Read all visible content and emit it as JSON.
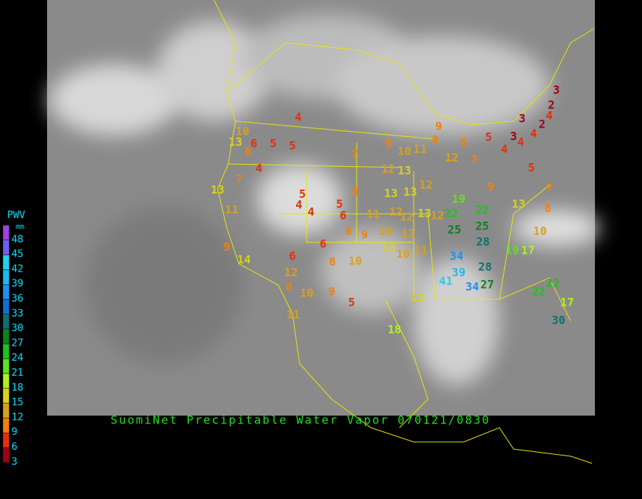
{
  "title": "SuomiNet Precipitable Water Vapor 070121/0830",
  "legend": {
    "title": "PWV",
    "unit": "mm",
    "levels": [
      48,
      45,
      42,
      39,
      36,
      33,
      30,
      27,
      24,
      21,
      18,
      15,
      12,
      9,
      6,
      3
    ],
    "colors": [
      "#a040e0",
      "#7060f0",
      "#20d0f0",
      "#20b8f0",
      "#2090f0",
      "#1070d0",
      "#107070",
      "#108020",
      "#20c020",
      "#60e020",
      "#b0f020",
      "#d8d020",
      "#d8a020",
      "#f08010",
      "#e03010",
      "#a0001a"
    ]
  },
  "stations": [
    4,
    10,
    13,
    6,
    5,
    5,
    8,
    4,
    7,
    13,
    11,
    9,
    14,
    6,
    12,
    8,
    10,
    9,
    5,
    11,
    5,
    4,
    4,
    5,
    6,
    8,
    9,
    10,
    8,
    6,
    8,
    7,
    9,
    10,
    11,
    12,
    13,
    13,
    13,
    12,
    11,
    12,
    12,
    13,
    12,
    10,
    11,
    13,
    10,
    11,
    13,
    18,
    9,
    8,
    8,
    5,
    12,
    7,
    3,
    3,
    4,
    4,
    4,
    2,
    4,
    3,
    2,
    5,
    7,
    8,
    9,
    19,
    22,
    22,
    13,
    25,
    25,
    28,
    10,
    19,
    17,
    34,
    28,
    39,
    41,
    34,
    27,
    22,
    22,
    17,
    30
  ]
}
